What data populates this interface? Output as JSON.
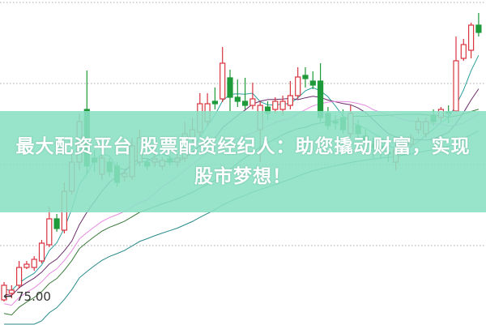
{
  "banner": {
    "title": "最大配资平台 股票配资经纪人：助您撬动财富，实现股市梦想！",
    "background": "#8ae0c4"
  },
  "chart_data": {
    "type": "candlestick",
    "title": "",
    "price_label": "75.00",
    "price_label_icon": "left-arrow-icon",
    "ylim": [
      73.35,
      93.4
    ],
    "grid": "horizontal dotted",
    "colors": {
      "up": "#d9333f",
      "down": "#1f9a3a",
      "ma": [
        "#2a9d9d",
        "#6a2a6a",
        "#e58ae0",
        "#3a7a3a",
        "#2a8a8a"
      ]
    },
    "moving_average_periods": [
      5,
      10,
      20,
      30,
      60
    ],
    "candles": [
      [
        74.9,
        75.8,
        76.0,
        74.8
      ],
      [
        75.3,
        75.5,
        75.8,
        75.0
      ],
      [
        75.8,
        76.9,
        77.3,
        75.6
      ],
      [
        76.9,
        77.1,
        77.3,
        76.8
      ],
      [
        76.9,
        77.4,
        77.6,
        76.7
      ],
      [
        77.3,
        78.4,
        78.6,
        77.15
      ],
      [
        78.3,
        79.9,
        80.65,
        78.15
      ],
      [
        79.9,
        79.3,
        80.2,
        79.1
      ],
      [
        79.2,
        81.6,
        82.15,
        79.0
      ],
      [
        81.6,
        83.4,
        84.15,
        81.4
      ],
      [
        83.4,
        85.9,
        86.4,
        82.9
      ],
      [
        86.65,
        83.15,
        89.05,
        82.65
      ],
      [
        83.65,
        83.4,
        84.15,
        82.8
      ],
      [
        82.65,
        83.65,
        83.9,
        82.3
      ],
      [
        83.4,
        82.8,
        83.65,
        82.5
      ],
      [
        83.15,
        82.15,
        83.4,
        81.9
      ],
      [
        82.5,
        82.7,
        83.0,
        82.2
      ],
      [
        82.5,
        84.4,
        84.9,
        82.3
      ],
      [
        83.4,
        84.9,
        85.4,
        83.15
      ],
      [
        83.4,
        83.15,
        83.65,
        82.9
      ],
      [
        83.4,
        83.6,
        83.9,
        83.1
      ],
      [
        83.15,
        83.5,
        83.7,
        82.9
      ],
      [
        83.6,
        83.4,
        83.8,
        83.2
      ],
      [
        83.4,
        83.65,
        83.9,
        83.1
      ],
      [
        83.65,
        85.15,
        85.9,
        83.4
      ],
      [
        84.9,
        85.4,
        86.15,
        84.65
      ],
      [
        85.25,
        87.0,
        87.65,
        85.0
      ],
      [
        85.9,
        87.0,
        87.65,
        85.65
      ],
      [
        87.15,
        87.0,
        88.0,
        86.65
      ],
      [
        87.3,
        89.5,
        90.5,
        87.1
      ],
      [
        88.6,
        87.4,
        89.1,
        86.55
      ],
      [
        87.4,
        87.15,
        88.5,
        86.8
      ],
      [
        87.15,
        86.9,
        88.6,
        86.65
      ],
      [
        86.9,
        87.3,
        88.3,
        86.65
      ],
      [
        85.4,
        86.9,
        87.15,
        83.4
      ],
      [
        86.8,
        86.4,
        87.15,
        86.0
      ],
      [
        86.65,
        87.15,
        87.4,
        86.4
      ],
      [
        86.65,
        87.15,
        87.5,
        86.3
      ],
      [
        86.9,
        87.5,
        88.4,
        86.65
      ],
      [
        87.5,
        88.65,
        89.25,
        87.3
      ],
      [
        88.75,
        88.55,
        89.25,
        88.0
      ],
      [
        88.4,
        88.15,
        89.0,
        87.9
      ],
      [
        88.4,
        86.15,
        89.5,
        85.9
      ],
      [
        86.4,
        85.65,
        86.8,
        85.4
      ],
      [
        85.9,
        85.8,
        86.3,
        85.4
      ],
      [
        86.15,
        85.4,
        86.65,
        85.15
      ],
      [
        85.15,
        86.4,
        86.9,
        84.9
      ],
      [
        85.65,
        85.15,
        86.0,
        84.8
      ],
      [
        85.0,
        84.65,
        85.4,
        84.3
      ],
      [
        84.5,
        84.3,
        84.9,
        83.65
      ],
      [
        84.4,
        84.15,
        84.65,
        83.65
      ],
      [
        84.0,
        83.9,
        84.4,
        83.4
      ],
      [
        83.4,
        84.15,
        84.5,
        82.9
      ],
      [
        84.4,
        84.5,
        84.8,
        84.0
      ],
      [
        84.5,
        84.9,
        85.15,
        84.3
      ],
      [
        85.4,
        85.9,
        86.15,
        85.15
      ],
      [
        85.15,
        85.9,
        86.15,
        84.9
      ],
      [
        86.3,
        85.9,
        86.65,
        85.65
      ],
      [
        86.15,
        86.65,
        86.8,
        85.9
      ],
      [
        86.5,
        86.4,
        86.9,
        85.8
      ],
      [
        86.55,
        89.65,
        91.15,
        86.5
      ],
      [
        89.8,
        90.65,
        91.0,
        89.65
      ],
      [
        90.3,
        91.85,
        92.0,
        89.8
      ],
      [
        91.85,
        91.4,
        92.6,
        91.15
      ]
    ]
  }
}
